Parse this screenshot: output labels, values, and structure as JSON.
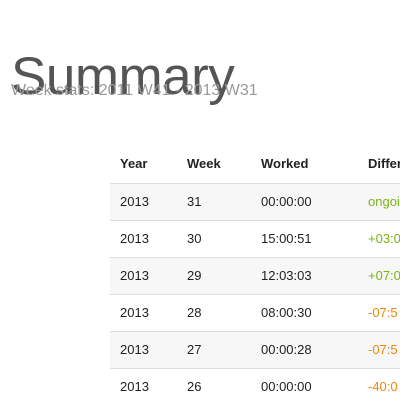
{
  "header": {
    "title": "Summary",
    "subtitle": "Week stats: 2011 W41 - 2013 W31"
  },
  "table": {
    "columns": [
      "Year",
      "Week",
      "Worked",
      "Differ"
    ],
    "rows": [
      {
        "year": "2013",
        "week": "31",
        "worked": "00:00:00",
        "difference": "ongoi",
        "tone": "positive"
      },
      {
        "year": "2013",
        "week": "30",
        "worked": "15:00:51",
        "difference": "+03:0",
        "tone": "positive"
      },
      {
        "year": "2013",
        "week": "29",
        "worked": "12:03:03",
        "difference": "+07:0",
        "tone": "positive"
      },
      {
        "year": "2013",
        "week": "28",
        "worked": "08:00:30",
        "difference": "-07:5",
        "tone": "negative"
      },
      {
        "year": "2013",
        "week": "27",
        "worked": "00:00:28",
        "difference": "-07:5",
        "tone": "negative"
      },
      {
        "year": "2013",
        "week": "26",
        "worked": "00:00:00",
        "difference": "-40:0",
        "tone": "negative"
      }
    ]
  },
  "colors": {
    "positive": "#7ab317",
    "negative": "#f0860f",
    "stripe": "#f7f7f7",
    "border": "#dddddd"
  }
}
